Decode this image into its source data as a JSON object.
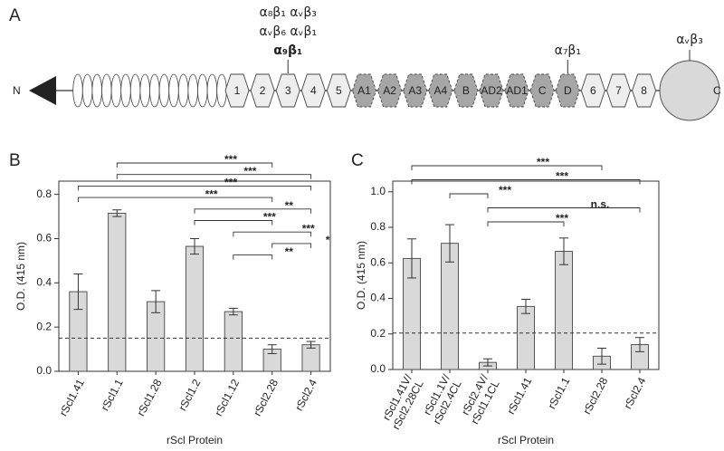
{
  "diagram": {
    "panel_label": "A",
    "n_label": "N",
    "c_label": "C",
    "segments": [
      {
        "label": "1",
        "shaded": false
      },
      {
        "label": "2",
        "shaded": false
      },
      {
        "label": "3",
        "shaded": false
      },
      {
        "label": "4",
        "shaded": false
      },
      {
        "label": "5",
        "shaded": false
      },
      {
        "label": "A1",
        "shaded": true
      },
      {
        "label": "A2",
        "shaded": true
      },
      {
        "label": "A3",
        "shaded": true
      },
      {
        "label": "A4",
        "shaded": true
      },
      {
        "label": "B",
        "shaded": true
      },
      {
        "label": "AD2",
        "shaded": true
      },
      {
        "label": "AD1",
        "shaded": true
      },
      {
        "label": "C",
        "shaded": true
      },
      {
        "label": "D",
        "shaded": true
      },
      {
        "label": "6",
        "shaded": false
      },
      {
        "label": "7",
        "shaded": false
      },
      {
        "label": "8",
        "shaded": false
      }
    ],
    "annotations": [
      {
        "target": 2,
        "lines": [
          "α₈β₁ αᵥβ₃",
          "αᵥβ₆ αᵥβ₁",
          "α₉β₁"
        ],
        "bold_last": true
      },
      {
        "target": 13,
        "lines": [
          "α₇β₁"
        ],
        "bold_last": false
      }
    ],
    "c_terminal_annotation": "αᵥβ₃"
  },
  "chart_data": [
    {
      "type": "bar",
      "panel_label": "B",
      "ylabel": "O.D. (415 nm)",
      "xlabel": "rScl Protein",
      "color": "#d9d9d9",
      "categories": [
        "rScl1.41",
        "rScl1.1",
        "rScl1.28",
        "rScl1.2",
        "rScl1.12",
        "rScl2.28",
        "rScl2.4"
      ],
      "values": [
        0.36,
        0.715,
        0.315,
        0.565,
        0.27,
        0.1,
        0.12
      ],
      "errors": [
        0.08,
        0.015,
        0.05,
        0.035,
        0.015,
        0.02,
        0.015
      ],
      "threshold": 0.15,
      "ylim": [
        0,
        0.86
      ],
      "yticks": [
        {
          "value": 0,
          "label": "0.0"
        },
        0.2,
        0.4,
        0.6,
        0.8
      ],
      "significance": [
        {
          "from": 1,
          "to": 5,
          "label": "***"
        },
        {
          "from": 1,
          "to": 6,
          "label": "***"
        },
        {
          "from": 0,
          "to": 6,
          "label": "***"
        },
        {
          "from": 0,
          "to": 5,
          "label": "***"
        },
        {
          "from": 3,
          "to": 6,
          "label": "**"
        },
        {
          "from": 3,
          "to": 5,
          "label": "***"
        },
        {
          "from": 4,
          "to": 6,
          "label": "***"
        },
        {
          "from": 5,
          "to": 6,
          "label": "*"
        },
        {
          "from": 4,
          "to": 5,
          "label": "**"
        }
      ]
    },
    {
      "type": "bar",
      "panel_label": "C",
      "ylabel": "O.D. (415 nm)",
      "xlabel": "rScl Protein",
      "color": "#d9d9d9",
      "categories": [
        [
          "rScl1.41V/",
          "rScl2.28CL"
        ],
        [
          "rScl1.1V/",
          "rScl2.4CL"
        ],
        [
          "rScl2.4V/",
          "rScl1.1CL"
        ],
        [
          "rScl1.41"
        ],
        [
          "rScl1.1"
        ],
        [
          "rScl2.28"
        ],
        [
          "rScl2.4"
        ]
      ],
      "values": [
        0.625,
        0.71,
        0.04,
        0.355,
        0.665,
        0.075,
        0.14
      ],
      "errors": [
        0.11,
        0.105,
        0.02,
        0.04,
        0.075,
        0.045,
        0.04
      ],
      "threshold": 0.205,
      "ylim": [
        0,
        1.06
      ],
      "yticks": [
        {
          "value": 0,
          "label": "0.0"
        },
        0.2,
        0.4,
        0.6,
        0.8,
        {
          "value": 1,
          "label": "1.0"
        }
      ],
      "significance": [
        {
          "from": 0,
          "to": 5,
          "label": "***"
        },
        {
          "from": 0,
          "to": 6,
          "label": "***"
        },
        {
          "from": 1,
          "to": 2,
          "label": "***"
        },
        {
          "from": 2,
          "to": 6,
          "label": "n.s."
        },
        {
          "from": 2,
          "to": 4,
          "label": "***"
        }
      ]
    }
  ]
}
